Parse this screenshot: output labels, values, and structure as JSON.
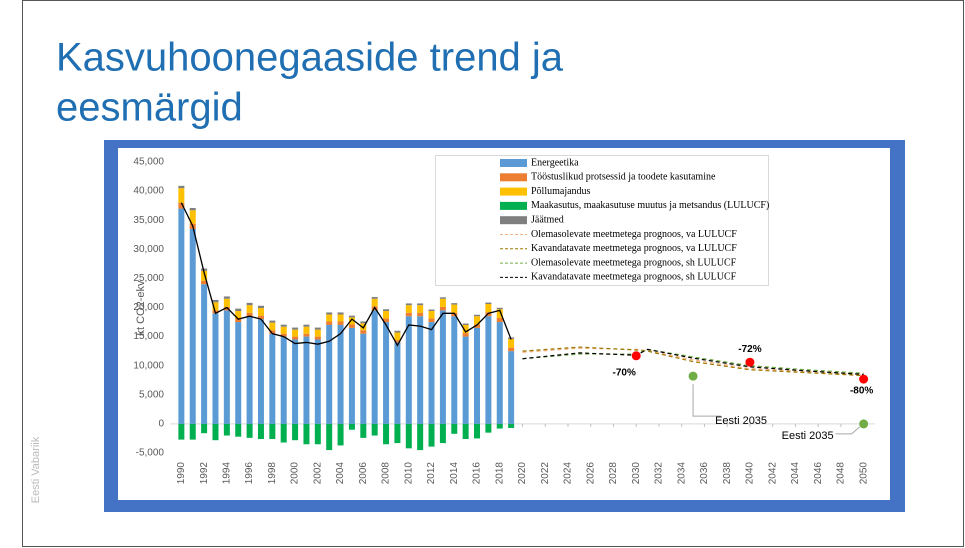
{
  "slide": {
    "title": [
      "Kasvuhoonegaaside trend ja",
      "eesmärgid"
    ],
    "footer": "Eesti Vabariik"
  },
  "chart_data": {
    "type": "bar",
    "ylabel": "kt CO2-ekv",
    "xlim": [
      1989,
      2051
    ],
    "xticks": [
      1990,
      1992,
      1994,
      1996,
      1998,
      2000,
      2002,
      2004,
      2006,
      2008,
      2010,
      2012,
      2014,
      2016,
      2018,
      2020,
      2022,
      2024,
      2026,
      2028,
      2030,
      2032,
      2034,
      2036,
      2038,
      2040,
      2042,
      2044,
      2046,
      2048,
      2050
    ],
    "ylim": [
      -5000,
      45000
    ],
    "yticks": [
      {
        "value": -5000,
        "label": "-5,000"
      },
      0,
      {
        "value": 5000,
        "label": "5,000"
      },
      {
        "value": 10000,
        "label": "10,000"
      },
      {
        "value": 15000,
        "label": "15,000"
      },
      {
        "value": 20000,
        "label": "20,000"
      },
      {
        "value": 25000,
        "label": "25,000"
      },
      {
        "value": 30000,
        "label": "30,000"
      },
      {
        "value": 35000,
        "label": "35,000"
      },
      {
        "value": 40000,
        "label": "40,000"
      },
      {
        "value": 45000,
        "label": "45,000"
      }
    ],
    "grid": false,
    "legend": "top",
    "x": [
      1990,
      1991,
      1992,
      1993,
      1994,
      1995,
      1996,
      1997,
      1998,
      1999,
      2000,
      2001,
      2002,
      2003,
      2004,
      2005,
      2006,
      2007,
      2008,
      2009,
      2010,
      2011,
      2012,
      2013,
      2014,
      2015,
      2016,
      2017,
      2018,
      2019
    ],
    "series": [
      {
        "name": "Energeetika",
        "color": "#5b9bd5",
        "values": [
          37000,
          33500,
          24000,
          19000,
          19500,
          17500,
          18500,
          18000,
          15500,
          15000,
          14500,
          15000,
          14500,
          17000,
          17000,
          16500,
          15500,
          19500,
          17500,
          14000,
          18500,
          18500,
          17500,
          19500,
          18500,
          15000,
          16500,
          18500,
          17500,
          12500
        ]
      },
      {
        "name": "Tööstuslikud protsessid ja toodete kasutamine",
        "color": "#ed7d31",
        "values": [
          1000,
          900,
          600,
          500,
          600,
          600,
          600,
          600,
          600,
          500,
          500,
          500,
          500,
          600,
          600,
          600,
          600,
          700,
          600,
          400,
          600,
          600,
          600,
          600,
          600,
          600,
          600,
          700,
          700,
          600
        ]
      },
      {
        "name": "Põllumajandus",
        "color": "#ffc000",
        "values": [
          2500,
          2300,
          1700,
          1400,
          1400,
          1300,
          1300,
          1300,
          1300,
          1200,
          1200,
          1200,
          1200,
          1200,
          1200,
          1200,
          1200,
          1300,
          1300,
          1300,
          1300,
          1300,
          1300,
          1400,
          1400,
          1400,
          1400,
          1400,
          1500,
          1500
        ]
      },
      {
        "name": "Maakasutus, maakasutuse muutus ja metsandus (LULUCF)",
        "color": "#00b050",
        "values": [
          -2700,
          -2700,
          -1600,
          -2800,
          -2000,
          -2200,
          -2400,
          -2600,
          -2600,
          -3200,
          -2800,
          -3500,
          -3500,
          -4500,
          -3700,
          -1000,
          -2400,
          -2000,
          -3500,
          -3300,
          -4200,
          -4500,
          -3900,
          -3300,
          -1700,
          -2600,
          -2500,
          -1500,
          -800,
          -700
        ]
      },
      {
        "name": "Jäätmed",
        "color": "#7f7f7f",
        "values": [
          400,
          400,
          400,
          400,
          400,
          400,
          400,
          400,
          350,
          350,
          350,
          350,
          350,
          350,
          350,
          300,
          300,
          300,
          300,
          300,
          300,
          300,
          250,
          250,
          250,
          250,
          250,
          250,
          250,
          250
        ]
      },
      {
        "type": "line",
        "name": "Olemasolevate meetmetega prognoos, va LULUCF",
        "color": "#f4b183",
        "dash": true,
        "x": [
          2020,
          2025,
          2030,
          2031,
          2035,
          2040,
          2045,
          2050
        ],
        "values": [
          12300,
          13000,
          12800,
          12600,
          11000,
          9500,
          9000,
          8500
        ]
      },
      {
        "type": "line",
        "name": "Kavandatavate meetmetega prognoos, va LULUCF",
        "color": "#9c7a00",
        "dash": true,
        "x": [
          2020,
          2025,
          2030,
          2031,
          2035,
          2040,
          2045,
          2050
        ],
        "values": [
          12500,
          13200,
          12700,
          12500,
          10700,
          9300,
          8800,
          8300
        ]
      },
      {
        "type": "line",
        "name": "Olemasolevate meetmetega prognoos, sh LULUCF",
        "color": "#70ad47",
        "dash": true,
        "x": [
          2020,
          2025,
          2030,
          2031,
          2035,
          2040,
          2045,
          2050
        ],
        "values": [
          11200,
          12000,
          12000,
          12800,
          11500,
          10000,
          9300,
          8700
        ]
      },
      {
        "type": "line",
        "name": "Kavandatavate meetmetega prognoos, sh LULUCF",
        "color": "#000000",
        "dash": true,
        "x": [
          2020,
          2025,
          2030,
          2031,
          2035,
          2040,
          2045,
          2050
        ],
        "values": [
          11200,
          12200,
          11800,
          12800,
          11300,
          9800,
          9100,
          8500
        ]
      },
      {
        "type": "line",
        "color": "#000000",
        "dash": false,
        "x": [
          1990,
          1991,
          1992,
          1993,
          1994,
          1995,
          1996,
          1997,
          1998,
          1999,
          2000,
          2001,
          2002,
          2003,
          2004,
          2005,
          2006,
          2007,
          2008,
          2009,
          2010,
          2011,
          2012,
          2013,
          2014,
          2015,
          2016,
          2017,
          2018,
          2019
        ],
        "values": [
          38000,
          34000,
          26000,
          19000,
          20000,
          18000,
          18500,
          18000,
          15500,
          15000,
          13800,
          14000,
          13700,
          14200,
          15500,
          18000,
          16500,
          20000,
          17000,
          13500,
          17000,
          16800,
          16200,
          19000,
          19000,
          15800,
          17000,
          19000,
          19500,
          14500
        ]
      }
    ],
    "annotations": [
      {
        "x": 2030,
        "y": 11700,
        "label": "-70%",
        "color": "#ff0000"
      },
      {
        "x": 2040,
        "y": 10600,
        "label": "-72%",
        "color": "#ff0000"
      },
      {
        "x": 2050,
        "y": 7700,
        "label": "-80%",
        "color": "#ff0000"
      },
      {
        "x": 2035,
        "y": 8200,
        "label": "Eesti 2035",
        "color": "#70ad47"
      },
      {
        "x": 2050,
        "y": 0,
        "label": "Eesti 2035",
        "color": "#70ad47"
      }
    ]
  }
}
